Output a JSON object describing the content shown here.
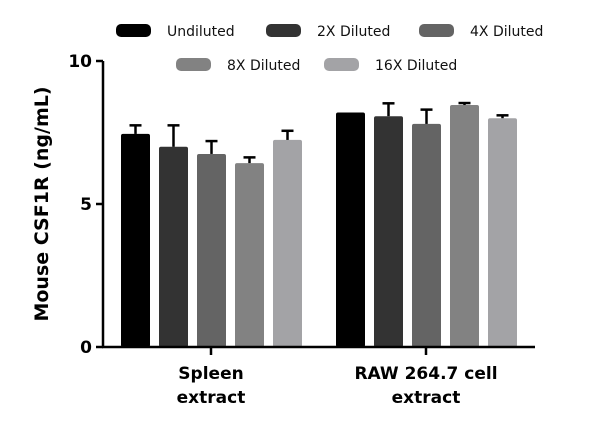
{
  "chart_data": {
    "type": "bar",
    "title": "",
    "xlabel": "",
    "ylabel": "Mouse CSF1R (ng/mL)",
    "ylim": [
      0,
      10
    ],
    "yticks": [
      0,
      5,
      10
    ],
    "grid": false,
    "legend_position": "top",
    "categories": [
      "Spleen extract",
      "RAW 264.7 cell extract"
    ],
    "category_lines": [
      [
        "Spleen",
        "extract"
      ],
      [
        "RAW 264.7 cell",
        "extract"
      ]
    ],
    "series": [
      {
        "name": "Undiluted",
        "color": "#000000",
        "values": [
          7.45,
          8.2
        ],
        "errors": [
          0.3,
          0.0
        ]
      },
      {
        "name": "2X Diluted",
        "color": "#333333",
        "values": [
          7.0,
          8.07
        ],
        "errors": [
          0.75,
          0.45
        ]
      },
      {
        "name": "4X Diluted",
        "color": "#646464",
        "values": [
          6.75,
          7.8
        ],
        "errors": [
          0.45,
          0.5
        ]
      },
      {
        "name": "8X Diluted",
        "color": "#828282",
        "values": [
          6.43,
          8.46
        ],
        "errors": [
          0.2,
          0.07
        ]
      },
      {
        "name": "16X Diluted",
        "color": "#a3a3a6",
        "values": [
          7.24,
          8.0
        ],
        "errors": [
          0.32,
          0.1
        ]
      }
    ]
  },
  "legend": {
    "items": [
      {
        "label": "Undiluted"
      },
      {
        "label": "2X Diluted"
      },
      {
        "label": "4X Diluted"
      },
      {
        "label": "8X Diluted"
      },
      {
        "label": "16X Diluted"
      }
    ]
  },
  "axis": {
    "ylabel": "Mouse CSF1R (ng/mL)",
    "tick_labels": [
      "0",
      "5",
      "10"
    ]
  }
}
